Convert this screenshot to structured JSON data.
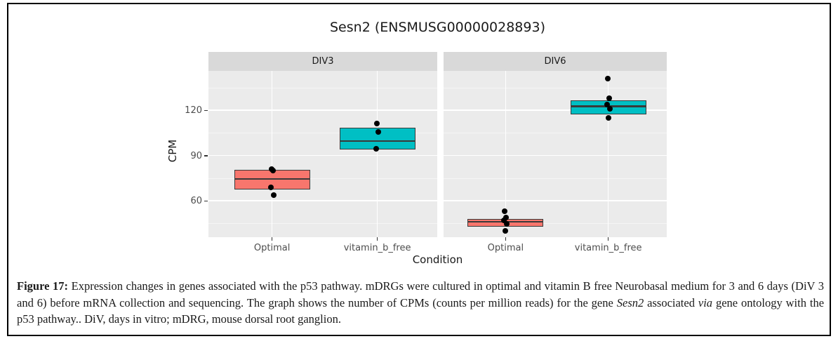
{
  "figure": {
    "caption_segments": [
      {
        "text": "Figure 17: ",
        "bold": true
      },
      {
        "text": "Expression changes in genes associated with the p53 pathway. mDRGs were cultured in optimal and vitamin B free Neurobasal medium for 3 and 6 days (DiV 3 and 6) before mRNA collection and sequencing. The graph shows the number of CPMs (counts per million reads) for the gene "
      },
      {
        "text": "Sesn2",
        "italic": true
      },
      {
        "text": " associated "
      },
      {
        "text": "via",
        "italic": true
      },
      {
        "text": " gene ontology with the p53 pathway.. DiV, days in vitro; mDRG, mouse dorsal root ganglion."
      }
    ]
  },
  "chart_data": {
    "type": "boxplot",
    "title": "Sesn2 (ENSMUSG00000028893)",
    "xlabel": "Condition",
    "ylabel": "CPM",
    "y_ticks": [
      60,
      90,
      120
    ],
    "ylim": [
      36,
      146
    ],
    "grid": true,
    "facets": [
      {
        "label": "DIV3",
        "groups": [
          {
            "condition": "Optimal",
            "color": "#F8766D",
            "q1": 67.5,
            "median": 74.5,
            "q3": 80.5,
            "points": [
              81,
              80,
              69,
              63.5
            ]
          },
          {
            "condition": "vitamin_b_free",
            "color": "#00BFC4",
            "q1": 94,
            "median": 99.5,
            "q3": 108.5,
            "points": [
              111,
              105.5,
              94.5
            ]
          }
        ]
      },
      {
        "label": "DIV6",
        "groups": [
          {
            "condition": "Optimal",
            "color": "#F8766D",
            "q1": 43,
            "median": 46,
            "q3": 48,
            "points": [
              53,
              49,
              47,
              44.5,
              40
            ]
          },
          {
            "condition": "vitamin_b_free",
            "color": "#00BFC4",
            "q1": 117,
            "median": 122.5,
            "q3": 126.5,
            "points": [
              141,
              128,
              123.5,
              121,
              115
            ]
          }
        ]
      }
    ],
    "colors": {
      "panel_bg": "#EBEBEB",
      "strip_bg": "#D9D9D9",
      "box_border": "#3A3A3A",
      "grid_major": "#FFFFFF",
      "grid_minor": "#F5F5F5",
      "axis_text": "#4D4D4D",
      "text": "#1A1A1A",
      "figure_border": "#000000"
    }
  }
}
